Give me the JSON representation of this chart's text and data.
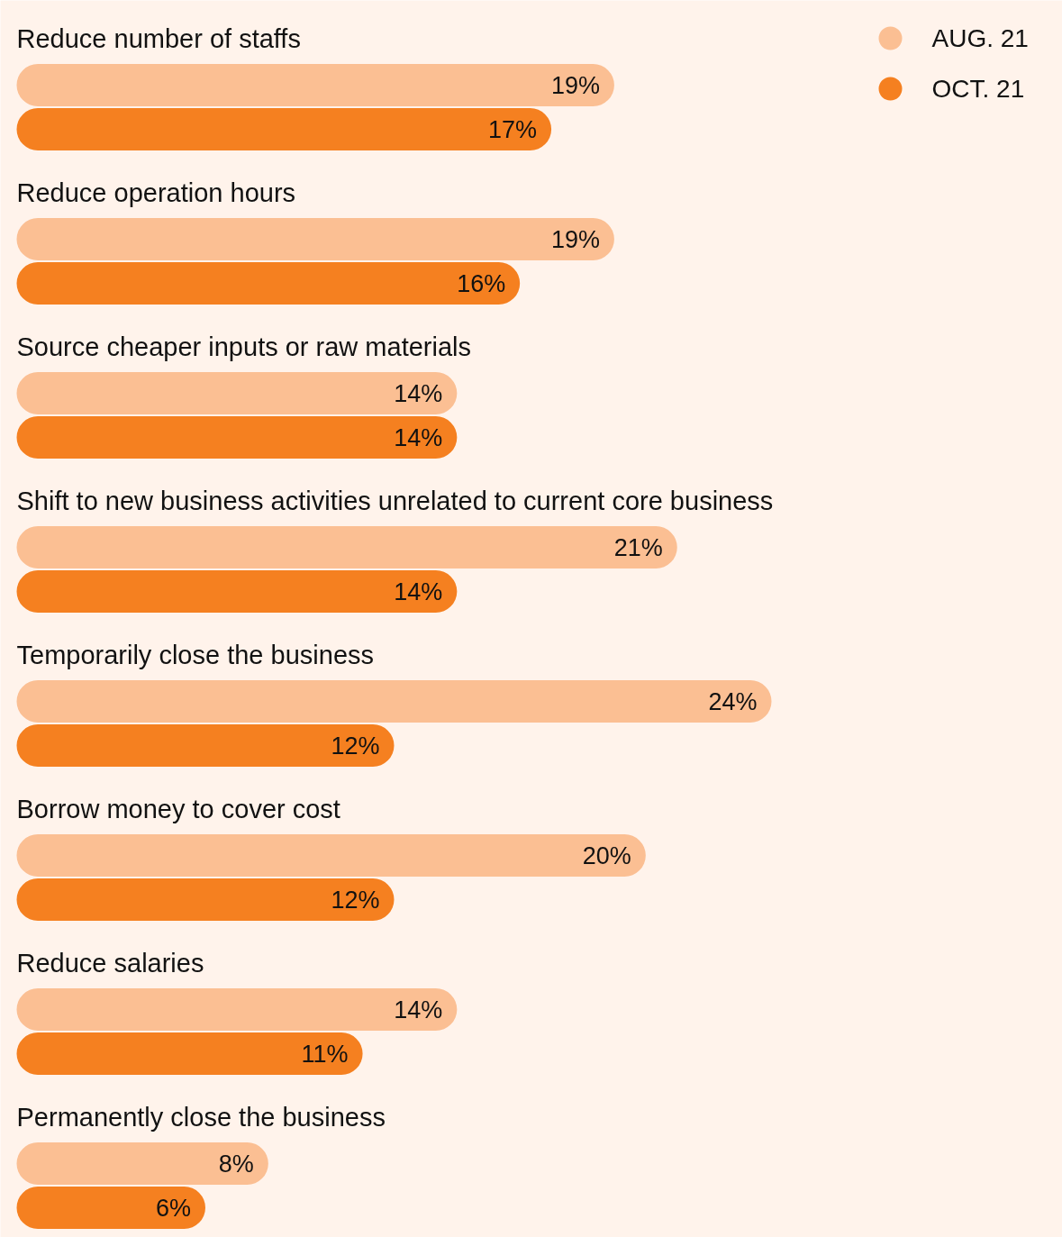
{
  "chart_data": {
    "type": "bar",
    "orientation": "horizontal",
    "categories": [
      "Reduce number of staffs",
      "Reduce operation hours",
      "Source cheaper inputs or raw materials",
      "Shift to new business activities unrelated to current core business",
      "Temporarily close the business",
      "Borrow money to cover cost",
      "Reduce salaries",
      "Permanently close the business"
    ],
    "series": [
      {
        "name": "AUG. 21",
        "color": "#fbbf93",
        "values": [
          19,
          19,
          14,
          21,
          24,
          20,
          14,
          8
        ],
        "value_labels": [
          "19%",
          "19%",
          "14%",
          "21%",
          "24%",
          "20%",
          "14%",
          "8%"
        ]
      },
      {
        "name": "OCT. 21",
        "color": "#f58020",
        "values": [
          17,
          16,
          14,
          14,
          12,
          12,
          11,
          6
        ],
        "value_labels": [
          "17%",
          "16%",
          "14%",
          "14%",
          "12%",
          "12%",
          "11%",
          "6%"
        ]
      }
    ],
    "legend": "top right",
    "grid": false
  }
}
